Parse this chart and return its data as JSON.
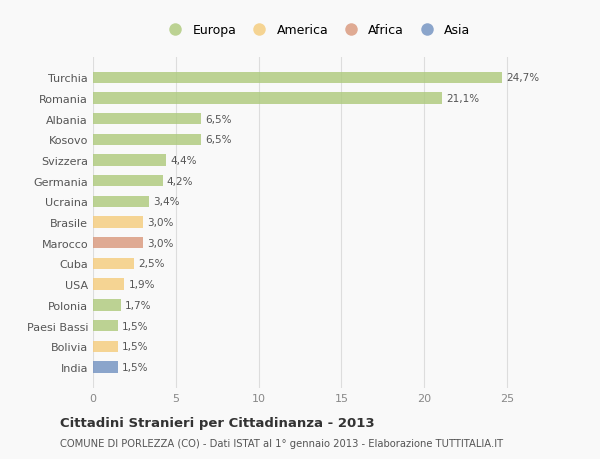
{
  "categories": [
    "Turchia",
    "Romania",
    "Albania",
    "Kosovo",
    "Svizzera",
    "Germania",
    "Ucraina",
    "Brasile",
    "Marocco",
    "Cuba",
    "USA",
    "Polonia",
    "Paesi Bassi",
    "Bolivia",
    "India"
  ],
  "values": [
    24.7,
    21.1,
    6.5,
    6.5,
    4.4,
    4.2,
    3.4,
    3.0,
    3.0,
    2.5,
    1.9,
    1.7,
    1.5,
    1.5,
    1.5
  ],
  "labels": [
    "24,7%",
    "21,1%",
    "6,5%",
    "6,5%",
    "4,4%",
    "4,2%",
    "3,4%",
    "3,0%",
    "3,0%",
    "2,5%",
    "1,9%",
    "1,7%",
    "1,5%",
    "1,5%",
    "1,5%"
  ],
  "colors": [
    "#adc97a",
    "#adc97a",
    "#adc97a",
    "#adc97a",
    "#adc97a",
    "#adc97a",
    "#adc97a",
    "#f5cb7a",
    "#d9967a",
    "#f5cb7a",
    "#f5cb7a",
    "#adc97a",
    "#adc97a",
    "#f5cb7a",
    "#7090c0"
  ],
  "legend_labels": [
    "Europa",
    "America",
    "Africa",
    "Asia"
  ],
  "legend_colors": [
    "#adc97a",
    "#f5cb7a",
    "#d9967a",
    "#7090c0"
  ],
  "xlim": [
    0,
    27
  ],
  "xticks": [
    0,
    5,
    10,
    15,
    20,
    25
  ],
  "title": "Cittadini Stranieri per Cittadinanza - 2013",
  "subtitle": "COMUNE DI PORLEZZA (CO) - Dati ISTAT al 1° gennaio 2013 - Elaborazione TUTTITALIA.IT",
  "background_color": "#f9f9f9",
  "bar_alpha": 0.8
}
